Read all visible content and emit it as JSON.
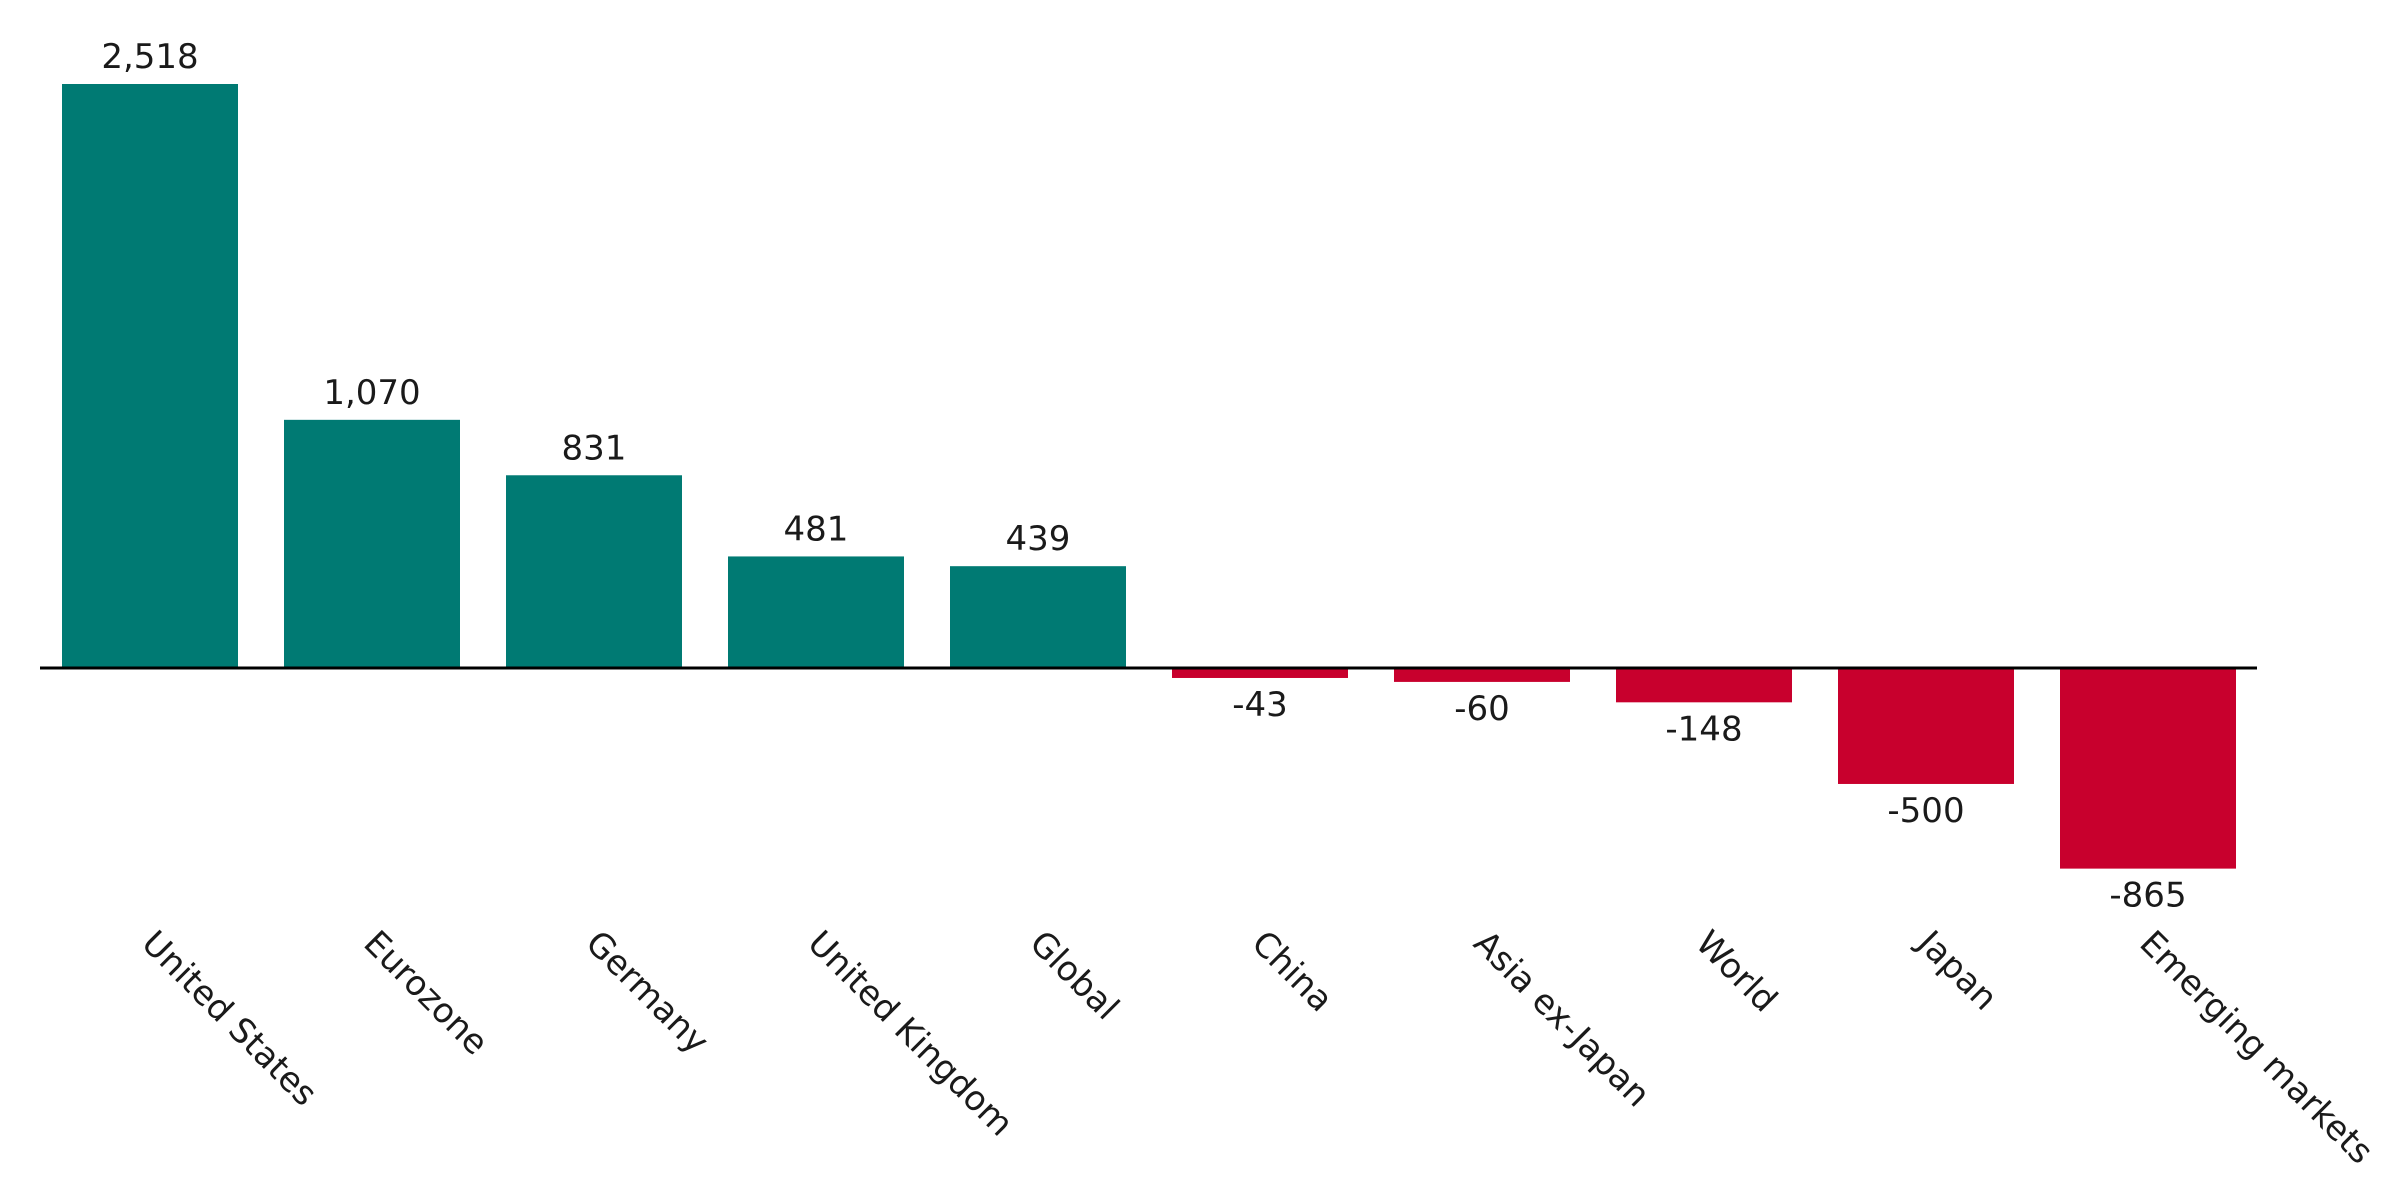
{
  "chart_data": {
    "type": "bar",
    "categories": [
      "United States",
      "Eurozone",
      "Germany",
      "United Kingdom",
      "Global",
      "China",
      "Asia ex-Japan",
      "World",
      "Japan",
      "Emerging markets"
    ],
    "values": [
      2518,
      1070,
      831,
      481,
      439,
      -43,
      -60,
      -148,
      -500,
      -865
    ],
    "value_labels": [
      "2,518",
      "1,070",
      "831",
      "481",
      "439",
      "-43",
      "-60",
      "-148",
      "-500",
      "-865"
    ],
    "title": "",
    "xlabel": "",
    "ylabel": "",
    "grid": false,
    "legend": "none",
    "colors": {
      "positive": "#007a73",
      "negative": "#c8002d",
      "baseline": "#000000",
      "text": "#1a1a1a"
    }
  }
}
